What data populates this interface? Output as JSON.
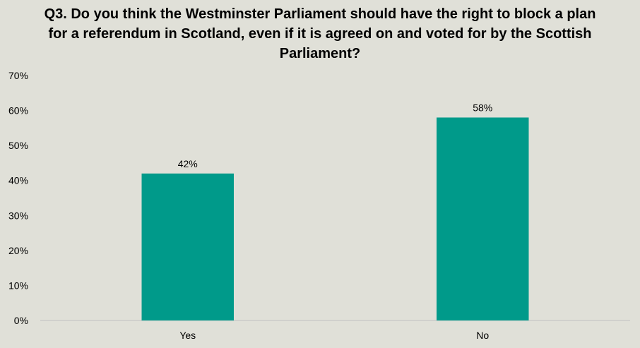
{
  "chart_data": {
    "type": "bar",
    "title": "Q3. Do you think the Westminster Parliament should have the right to block a plan for a referendum in Scotland, even if it is agreed on and voted for by the Scottish Parliament?",
    "categories": [
      "Yes",
      "No"
    ],
    "values": [
      42,
      58
    ],
    "data_labels": [
      "42%",
      "58%"
    ],
    "ylim": [
      0,
      70
    ],
    "yticks": [
      0,
      10,
      20,
      30,
      40,
      50,
      60,
      70
    ],
    "ytick_labels": [
      "0%",
      "10%",
      "20%",
      "30%",
      "40%",
      "50%",
      "60%",
      "70%"
    ],
    "xlabel": "",
    "ylabel": "",
    "grid": false,
    "legend": "none",
    "bar_color": "#009a8a",
    "axis_color": "#bfbfbf"
  }
}
